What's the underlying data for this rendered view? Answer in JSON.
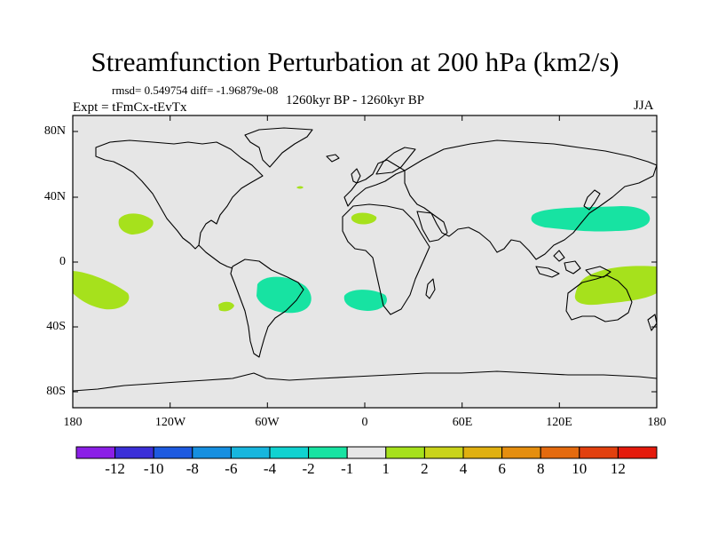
{
  "title": "Streamfunction Perturbation at 200 hPa (km2/s)",
  "stats": "rmsd= 0.549754  diff= -1.96879e-08",
  "left_label": "Expt = tFmCx-tEvTx",
  "center_label": "1260kyr BP - 1260kyr BP",
  "right_label": "JJA",
  "y_ticks": [
    "80N",
    "40N",
    "0",
    "40S",
    "80S"
  ],
  "x_ticks": [
    "180",
    "120W",
    "60W",
    "0",
    "60E",
    "120E",
    "180"
  ],
  "colorbar": {
    "labels": [
      "-12",
      "-10",
      "-8",
      "-6",
      "-4",
      "-2",
      "-1",
      "1",
      "2",
      "4",
      "6",
      "8",
      "10",
      "12"
    ],
    "colors": [
      "#8b1fe6",
      "#3b2fd8",
      "#1d5ae0",
      "#168fe0",
      "#17b6de",
      "#10d2d0",
      "#17e3a2",
      "#e6e6e6",
      "#a6e11c",
      "#c9d31a",
      "#e0b010",
      "#e58e0e",
      "#e46a0e",
      "#e2400e",
      "#e41a0c"
    ]
  },
  "colors": {
    "background": "#e6e6e6",
    "negative_fill": "#17e3a2",
    "positive_fill": "#a6e11c"
  }
}
